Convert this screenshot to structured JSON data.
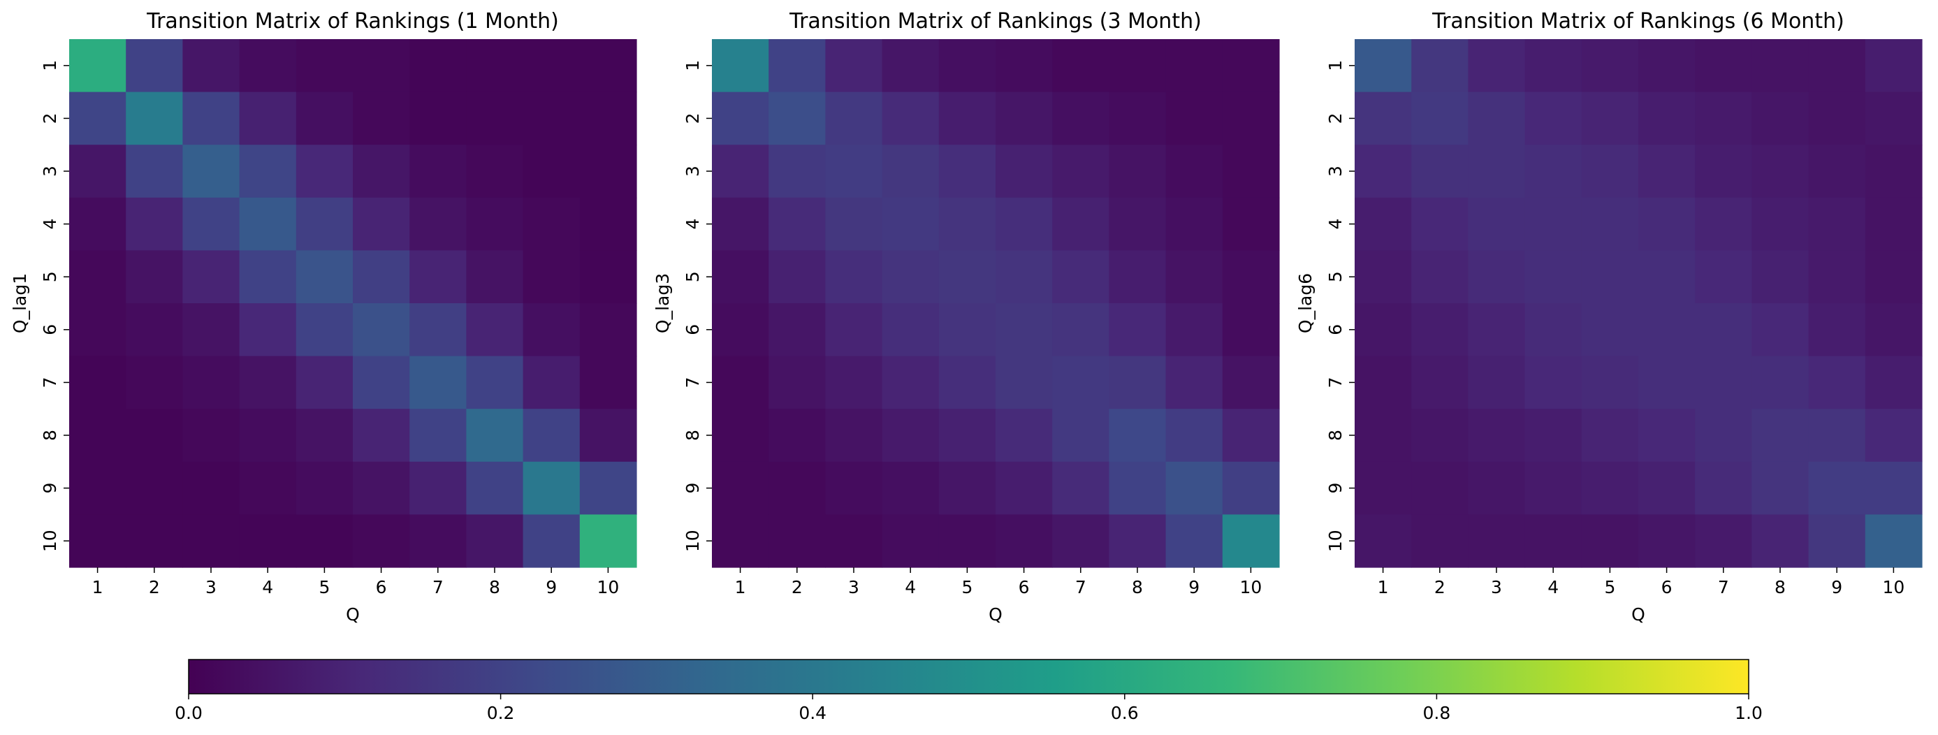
{
  "chart_data": [
    {
      "type": "heatmap",
      "title": "Transition Matrix of Rankings (1 Month)",
      "xlabel": "Q",
      "ylabel": "Q_lag1",
      "x_categories": [
        "1",
        "2",
        "3",
        "4",
        "5",
        "6",
        "7",
        "8",
        "9",
        "10"
      ],
      "y_categories": [
        "1",
        "2",
        "3",
        "4",
        "5",
        "6",
        "7",
        "8",
        "9",
        "10"
      ],
      "vmin": 0,
      "vmax": 1,
      "values": [
        [
          0.62,
          0.2,
          0.06,
          0.03,
          0.02,
          0.02,
          0.01,
          0.01,
          0.01,
          0.01
        ],
        [
          0.21,
          0.42,
          0.2,
          0.09,
          0.04,
          0.02,
          0.01,
          0.01,
          0.01,
          0.01
        ],
        [
          0.06,
          0.2,
          0.3,
          0.21,
          0.11,
          0.06,
          0.03,
          0.02,
          0.01,
          0.01
        ],
        [
          0.03,
          0.1,
          0.2,
          0.28,
          0.19,
          0.1,
          0.05,
          0.03,
          0.02,
          0.01
        ],
        [
          0.02,
          0.05,
          0.1,
          0.2,
          0.26,
          0.19,
          0.1,
          0.05,
          0.02,
          0.01
        ],
        [
          0.02,
          0.03,
          0.05,
          0.11,
          0.2,
          0.25,
          0.19,
          0.1,
          0.04,
          0.02
        ],
        [
          0.01,
          0.02,
          0.03,
          0.05,
          0.1,
          0.2,
          0.28,
          0.2,
          0.08,
          0.02
        ],
        [
          0.01,
          0.01,
          0.02,
          0.03,
          0.05,
          0.1,
          0.2,
          0.34,
          0.2,
          0.05
        ],
        [
          0.01,
          0.01,
          0.01,
          0.02,
          0.03,
          0.05,
          0.09,
          0.2,
          0.4,
          0.21
        ],
        [
          0.01,
          0.01,
          0.01,
          0.01,
          0.01,
          0.02,
          0.03,
          0.06,
          0.2,
          0.64
        ]
      ]
    },
    {
      "type": "heatmap",
      "title": "Transition Matrix of Rankings (3 Month)",
      "xlabel": "Q",
      "ylabel": "Q_lag3",
      "x_categories": [
        "1",
        "2",
        "3",
        "4",
        "5",
        "6",
        "7",
        "8",
        "9",
        "10"
      ],
      "y_categories": [
        "1",
        "2",
        "3",
        "4",
        "5",
        "6",
        "7",
        "8",
        "9",
        "10"
      ],
      "vmin": 0,
      "vmax": 1,
      "values": [
        [
          0.44,
          0.2,
          0.1,
          0.06,
          0.04,
          0.03,
          0.02,
          0.02,
          0.02,
          0.02
        ],
        [
          0.2,
          0.24,
          0.17,
          0.12,
          0.08,
          0.06,
          0.04,
          0.03,
          0.02,
          0.02
        ],
        [
          0.1,
          0.17,
          0.18,
          0.16,
          0.13,
          0.09,
          0.07,
          0.05,
          0.03,
          0.02
        ],
        [
          0.06,
          0.12,
          0.16,
          0.17,
          0.15,
          0.13,
          0.09,
          0.06,
          0.04,
          0.02
        ],
        [
          0.04,
          0.09,
          0.13,
          0.15,
          0.16,
          0.15,
          0.12,
          0.08,
          0.05,
          0.03
        ],
        [
          0.03,
          0.06,
          0.1,
          0.13,
          0.15,
          0.16,
          0.15,
          0.11,
          0.07,
          0.03
        ],
        [
          0.02,
          0.05,
          0.07,
          0.1,
          0.13,
          0.16,
          0.17,
          0.16,
          0.1,
          0.05
        ],
        [
          0.02,
          0.03,
          0.05,
          0.07,
          0.09,
          0.12,
          0.17,
          0.22,
          0.18,
          0.1
        ],
        [
          0.02,
          0.02,
          0.03,
          0.04,
          0.06,
          0.08,
          0.12,
          0.2,
          0.25,
          0.19
        ],
        [
          0.02,
          0.02,
          0.02,
          0.03,
          0.03,
          0.04,
          0.06,
          0.1,
          0.2,
          0.47
        ]
      ]
    },
    {
      "type": "heatmap",
      "title": "Transition Matrix of Rankings (6 Month)",
      "xlabel": "Q",
      "ylabel": "Q_lag6",
      "x_categories": [
        "1",
        "2",
        "3",
        "4",
        "5",
        "6",
        "7",
        "8",
        "9",
        "10"
      ],
      "y_categories": [
        "1",
        "2",
        "3",
        "4",
        "5",
        "6",
        "7",
        "8",
        "9",
        "10"
      ],
      "vmin": 0,
      "vmax": 1,
      "values": [
        [
          0.28,
          0.16,
          0.1,
          0.08,
          0.07,
          0.06,
          0.05,
          0.05,
          0.05,
          0.08
        ],
        [
          0.15,
          0.17,
          0.14,
          0.11,
          0.1,
          0.08,
          0.07,
          0.06,
          0.05,
          0.06
        ],
        [
          0.11,
          0.14,
          0.14,
          0.13,
          0.12,
          0.1,
          0.08,
          0.07,
          0.06,
          0.05
        ],
        [
          0.08,
          0.11,
          0.13,
          0.13,
          0.13,
          0.12,
          0.1,
          0.08,
          0.07,
          0.05
        ],
        [
          0.07,
          0.1,
          0.12,
          0.13,
          0.13,
          0.13,
          0.11,
          0.09,
          0.07,
          0.05
        ],
        [
          0.06,
          0.08,
          0.1,
          0.12,
          0.13,
          0.13,
          0.13,
          0.11,
          0.08,
          0.06
        ],
        [
          0.05,
          0.07,
          0.09,
          0.11,
          0.12,
          0.13,
          0.13,
          0.13,
          0.11,
          0.08
        ],
        [
          0.05,
          0.06,
          0.07,
          0.08,
          0.1,
          0.11,
          0.13,
          0.15,
          0.15,
          0.11
        ],
        [
          0.05,
          0.05,
          0.06,
          0.07,
          0.08,
          0.09,
          0.12,
          0.15,
          0.18,
          0.18
        ],
        [
          0.06,
          0.05,
          0.05,
          0.05,
          0.05,
          0.06,
          0.07,
          0.1,
          0.16,
          0.31
        ]
      ]
    }
  ],
  "colorbar": {
    "colormap": "viridis",
    "min": 0,
    "max": 1,
    "ticks": [
      0.0,
      0.2,
      0.4,
      0.6,
      0.8,
      1.0
    ],
    "tick_labels": [
      "0.0",
      "0.2",
      "0.4",
      "0.6",
      "0.8",
      "1.0"
    ],
    "orientation": "horizontal",
    "placement": "bottom"
  },
  "colors": {
    "viridis_stops": [
      "#440154",
      "#482878",
      "#3e4989",
      "#31688e",
      "#26828e",
      "#1f9e89",
      "#35b779",
      "#6ece58",
      "#b5de2b",
      "#fde725"
    ],
    "text": "#000000",
    "frame": "#000000"
  }
}
